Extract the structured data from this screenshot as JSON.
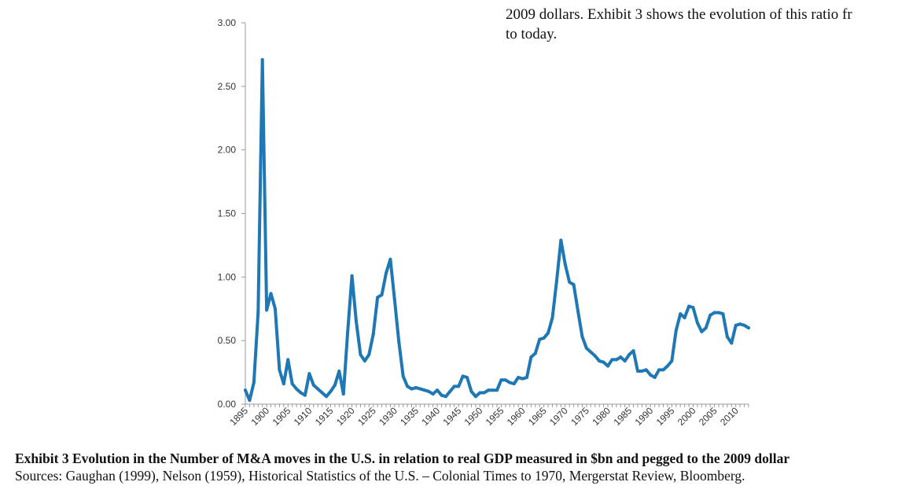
{
  "document": {
    "lines": [
      "2009 dollars. Exhibit 3 shows the evolution of this ratio fr",
      "to today."
    ]
  },
  "caption": {
    "title": "Exhibit 3 Evolution in the Number of M&A moves in the U.S. in relation to real GDP measured in $bn and pegged to the 2009 dollar",
    "sources": "Sources: Gaughan (1999), Nelson (1959), Historical Statistics of the U.S. – Colonial Times to 1970, Mergerstat Review, Bloomberg."
  },
  "chart_data": {
    "type": "line",
    "title": "",
    "xlabel": "",
    "ylabel": "",
    "xlim": [
      1895,
      2013
    ],
    "ylim": [
      0,
      3
    ],
    "yticks": [
      "0.00",
      "0.50",
      "1.00",
      "1.50",
      "2.00",
      "2.50",
      "3.00"
    ],
    "xticks": [
      "1895",
      "1900",
      "1905",
      "1910",
      "1915",
      "1920",
      "1925",
      "1930",
      "1935",
      "1940",
      "1945",
      "1950",
      "1955",
      "1960",
      "1965",
      "1970",
      "1975",
      "1980",
      "1985",
      "1990",
      "1995",
      "2000",
      "2005",
      "2010"
    ],
    "grid": false,
    "legend": "none",
    "line_color": "#1f78b4",
    "series": [
      {
        "x": [
          1895,
          1896,
          1897,
          1898,
          1899,
          1900,
          1901,
          1902,
          1903,
          1904,
          1905,
          1906,
          1907,
          1908,
          1909,
          1910,
          1911,
          1912,
          1913,
          1914,
          1915,
          1916,
          1917,
          1918,
          1919,
          1920,
          1921,
          1922,
          1923,
          1924,
          1925,
          1926,
          1927,
          1928,
          1929,
          1930,
          1931,
          1932,
          1933,
          1934,
          1935,
          1936,
          1937,
          1938,
          1939,
          1940,
          1941,
          1942,
          1943,
          1944,
          1945,
          1946,
          1947,
          1948,
          1949,
          1950,
          1951,
          1952,
          1953,
          1954,
          1955,
          1956,
          1957,
          1958,
          1959,
          1960,
          1961,
          1962,
          1963,
          1964,
          1965,
          1966,
          1967,
          1968,
          1969,
          1970,
          1971,
          1972,
          1973,
          1974,
          1975,
          1976,
          1977,
          1978,
          1979,
          1980,
          1981,
          1982,
          1983,
          1984,
          1985,
          1986,
          1987,
          1988,
          1989,
          1990,
          1991,
          1992,
          1993,
          1994,
          1995,
          1996,
          1997,
          1998,
          1999,
          2000,
          2001,
          2002,
          2003,
          2004,
          2005,
          2006,
          2007,
          2008,
          2009,
          2010,
          2011,
          2012,
          2013
        ],
        "values": [
          0.11,
          0.03,
          0.17,
          0.72,
          2.71,
          0.74,
          0.87,
          0.75,
          0.27,
          0.16,
          0.35,
          0.16,
          0.12,
          0.09,
          0.07,
          0.24,
          0.15,
          0.12,
          0.09,
          0.06,
          0.1,
          0.15,
          0.26,
          0.08,
          0.57,
          1.01,
          0.65,
          0.39,
          0.34,
          0.39,
          0.55,
          0.84,
          0.86,
          1.03,
          1.14,
          0.82,
          0.49,
          0.22,
          0.14,
          0.12,
          0.13,
          0.12,
          0.11,
          0.1,
          0.08,
          0.11,
          0.07,
          0.06,
          0.1,
          0.14,
          0.14,
          0.22,
          0.21,
          0.1,
          0.06,
          0.09,
          0.09,
          0.11,
          0.11,
          0.11,
          0.19,
          0.19,
          0.17,
          0.16,
          0.21,
          0.2,
          0.21,
          0.37,
          0.4,
          0.51,
          0.52,
          0.56,
          0.68,
          0.97,
          1.29,
          1.1,
          0.96,
          0.94,
          0.73,
          0.53,
          0.44,
          0.41,
          0.38,
          0.34,
          0.33,
          0.3,
          0.35,
          0.35,
          0.37,
          0.34,
          0.39,
          0.42,
          0.26,
          0.26,
          0.27,
          0.23,
          0.21,
          0.27,
          0.27,
          0.3,
          0.34,
          0.58,
          0.71,
          0.68,
          0.77,
          0.76,
          0.64,
          0.57,
          0.6,
          0.7,
          0.72,
          0.72,
          0.71,
          0.53,
          0.48,
          0.62,
          0.63,
          0.62,
          0.6
        ]
      }
    ]
  }
}
